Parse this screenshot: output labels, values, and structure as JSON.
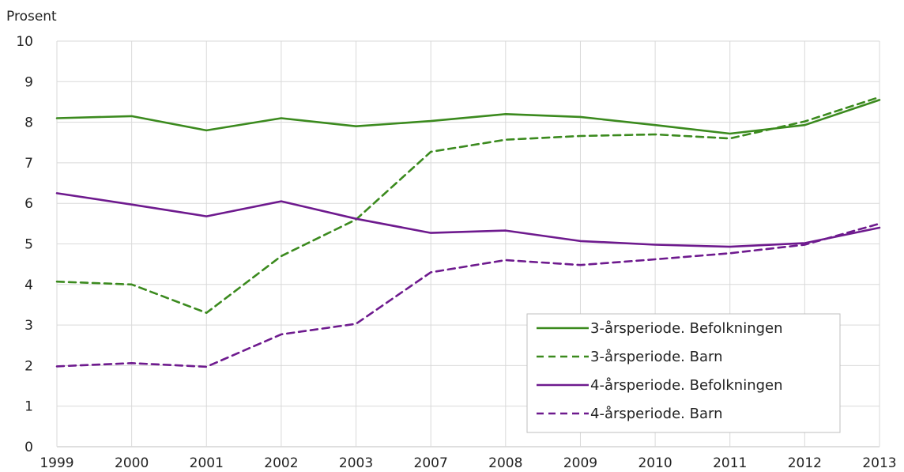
{
  "chart_data": {
    "type": "line",
    "ylabel": "Prosent",
    "categories": [
      "1999",
      "2000",
      "2001",
      "2002",
      "2003",
      "2007",
      "2008",
      "2009",
      "2010",
      "2011",
      "2012",
      "2013"
    ],
    "ylim": [
      0,
      10
    ],
    "yticks": [
      0,
      1,
      2,
      3,
      4,
      5,
      6,
      7,
      8,
      9,
      10
    ],
    "grid": true,
    "legend_position": "bottom-right",
    "series": [
      {
        "name": "3-årsperiode. Befolkningen",
        "color": "#3b8a1e",
        "dash": "solid",
        "values": [
          8.1,
          8.15,
          7.8,
          8.1,
          7.9,
          8.03,
          8.2,
          8.13,
          7.93,
          7.72,
          7.93,
          8.55
        ]
      },
      {
        "name": "3-årsperiode. Barn",
        "color": "#3b8a1e",
        "dash": "dashed",
        "values": [
          4.07,
          4.0,
          3.3,
          4.7,
          5.6,
          7.27,
          7.57,
          7.66,
          7.7,
          7.6,
          8.02,
          8.62
        ]
      },
      {
        "name": "4-årsperiode. Befolkningen",
        "color": "#6e1a8e",
        "dash": "solid",
        "values": [
          6.25,
          5.97,
          5.68,
          6.05,
          5.62,
          5.27,
          5.33,
          5.07,
          4.98,
          4.93,
          5.02,
          5.4
        ]
      },
      {
        "name": "4-årsperiode. Barn",
        "color": "#6e1a8e",
        "dash": "dashed",
        "values": [
          1.98,
          2.06,
          1.97,
          2.77,
          3.03,
          4.3,
          4.6,
          4.48,
          4.62,
          4.77,
          4.98,
          5.5
        ]
      }
    ]
  }
}
